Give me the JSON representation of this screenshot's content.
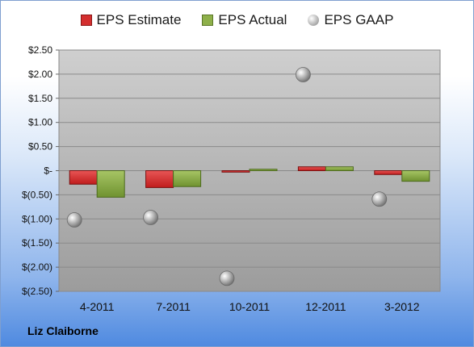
{
  "chart_data": {
    "type": "bar",
    "title": "",
    "xlabel": "",
    "ylabel": "",
    "categories": [
      "4-2011",
      "7-2011",
      "10-2011",
      "12-2011",
      "3-2012"
    ],
    "series": [
      {
        "name": "EPS Estimate",
        "kind": "bar",
        "color": "#d42f2f",
        "values": [
          -0.28,
          -0.35,
          -0.03,
          0.08,
          -0.08
        ]
      },
      {
        "name": "EPS Actual",
        "kind": "bar",
        "color": "#8eb04a",
        "values": [
          -0.55,
          -0.33,
          0.03,
          0.08,
          -0.22
        ]
      },
      {
        "name": "EPS GAAP",
        "kind": "scatter",
        "color": "#9a9a9a",
        "values": [
          -1.02,
          -0.97,
          -2.23,
          1.99,
          -0.59
        ]
      }
    ],
    "ylim": [
      -2.5,
      2.5
    ],
    "yticks": [
      2.5,
      2.0,
      1.5,
      1.0,
      0.5,
      0,
      -0.5,
      -1.0,
      -1.5,
      -2.0,
      -2.5
    ],
    "ytick_labels": [
      "$2.50",
      "$2.00",
      "$1.50",
      "$1.00",
      "$0.50",
      "$-",
      "$(0.50)",
      "$(1.00)",
      "$(1.50)",
      "$(2.00)",
      "$(2.50)"
    ],
    "grid": true,
    "legend_position": "top"
  },
  "company": "Liz Claiborne"
}
